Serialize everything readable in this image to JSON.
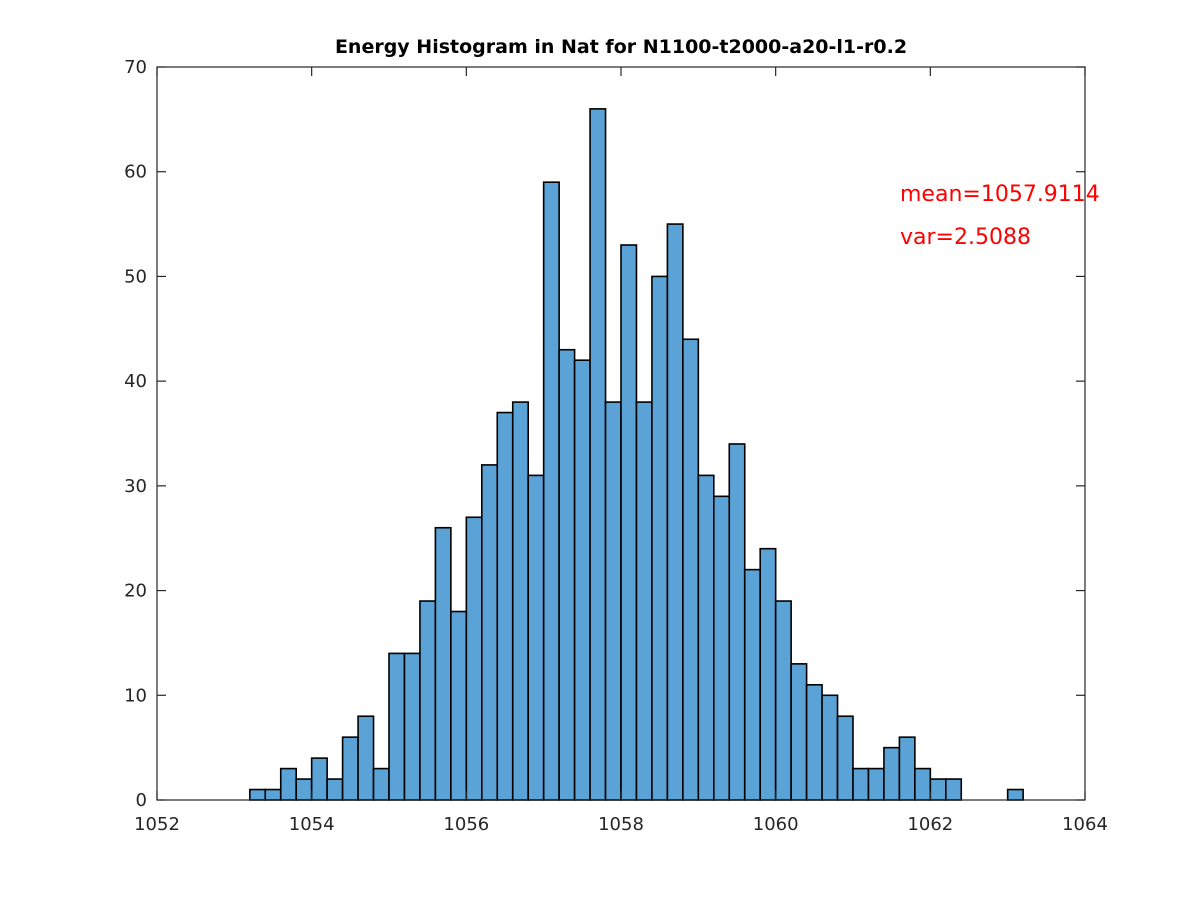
{
  "chart_data": {
    "type": "bar",
    "title": "Energy Histogram in Nat for N1100-t2000-a20-l1-r0.2",
    "xlabel": "",
    "ylabel": "",
    "xlim": [
      1052,
      1064
    ],
    "ylim": [
      0,
      70
    ],
    "x_ticks": [
      "1052",
      "1054",
      "1056",
      "1058",
      "1060",
      "1062",
      "1064"
    ],
    "y_ticks": [
      "0",
      "10",
      "20",
      "30",
      "40",
      "50",
      "60",
      "70"
    ],
    "bin_start": 1053.2,
    "bin_width": 0.2,
    "values": [
      1,
      1,
      3,
      2,
      4,
      2,
      6,
      8,
      3,
      14,
      14,
      19,
      26,
      18,
      27,
      32,
      37,
      38,
      31,
      59,
      43,
      42,
      66,
      38,
      53,
      38,
      50,
      55,
      44,
      31,
      29,
      34,
      22,
      24,
      19,
      13,
      11,
      10,
      8,
      3,
      3,
      5,
      6,
      3,
      2,
      2,
      0,
      0,
      0,
      1
    ],
    "bar_color": "#5ba3d6",
    "grid": false,
    "annotations": [
      {
        "text": "mean=1057.9114",
        "color": "#ff0000"
      },
      {
        "text": "var=2.5088",
        "color": "#ff0000"
      }
    ]
  }
}
